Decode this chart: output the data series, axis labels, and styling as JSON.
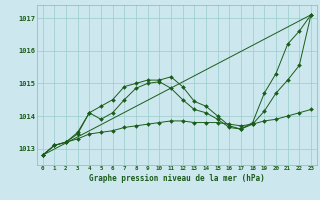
{
  "title": "Graphe pression niveau de la mer (hPa)",
  "bg_color": "#cce8ee",
  "grid_color": "#99cccc",
  "line_color": "#1a5c1a",
  "x_ticks": [
    0,
    1,
    2,
    3,
    4,
    5,
    6,
    7,
    8,
    9,
    10,
    11,
    12,
    13,
    14,
    15,
    16,
    17,
    18,
    19,
    20,
    21,
    22,
    23
  ],
  "y_ticks": [
    1013,
    1014,
    1015,
    1016,
    1017
  ],
  "ylim": [
    1012.5,
    1017.4
  ],
  "xlim": [
    -0.5,
    23.5
  ],
  "series": [
    {
      "x": [
        0,
        1,
        2,
        3,
        4,
        5,
        6,
        7,
        8,
        9,
        10,
        11,
        12,
        13,
        14,
        15,
        16,
        17,
        18,
        19,
        20,
        21,
        22,
        23
      ],
      "y": [
        1012.8,
        1013.1,
        1013.2,
        1013.5,
        1014.1,
        1014.3,
        1014.5,
        1014.9,
        1015.0,
        1015.1,
        1015.1,
        1015.2,
        1014.9,
        1014.45,
        1014.3,
        1014.0,
        1013.7,
        1013.6,
        1013.8,
        1014.7,
        1015.3,
        1016.2,
        1016.6,
        1017.1
      ],
      "marker": true,
      "line": true
    },
    {
      "x": [
        0,
        1,
        2,
        3,
        4,
        5,
        6,
        7,
        8,
        9,
        10,
        11,
        12,
        13,
        14,
        15,
        16,
        17,
        18,
        19,
        20,
        21,
        22,
        23
      ],
      "y": [
        1012.8,
        1013.1,
        1013.2,
        1013.45,
        1014.1,
        1013.9,
        1014.1,
        1014.5,
        1014.85,
        1015.0,
        1015.05,
        1014.85,
        1014.5,
        1014.2,
        1014.1,
        1013.9,
        1013.65,
        1013.6,
        1013.75,
        1014.15,
        1014.7,
        1015.1,
        1015.55,
        1017.1
      ],
      "marker": true,
      "line": true
    },
    {
      "x": [
        0,
        23
      ],
      "y": [
        1012.8,
        1017.1
      ],
      "marker": false,
      "line": true
    },
    {
      "x": [
        0,
        1,
        2,
        3,
        4,
        5,
        6,
        7,
        8,
        9,
        10,
        11,
        12,
        13,
        14,
        15,
        16,
        17,
        18,
        19,
        20,
        21,
        22,
        23
      ],
      "y": [
        1012.8,
        1013.1,
        1013.2,
        1013.3,
        1013.45,
        1013.5,
        1013.55,
        1013.65,
        1013.7,
        1013.75,
        1013.8,
        1013.85,
        1013.85,
        1013.8,
        1013.8,
        1013.8,
        1013.75,
        1013.7,
        1013.75,
        1013.85,
        1013.9,
        1014.0,
        1014.1,
        1014.2
      ],
      "marker": true,
      "line": true
    }
  ]
}
